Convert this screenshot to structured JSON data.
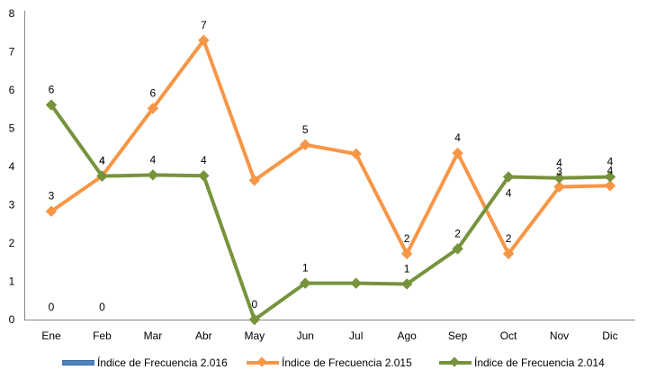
{
  "chart_data": {
    "type": "line",
    "categories": [
      "Ene",
      "Feb",
      "Mar",
      "Abr",
      "May",
      "Jun",
      "Jul",
      "Ago",
      "Sep",
      "Oct",
      "Nov",
      "Dic"
    ],
    "ylim": [
      0,
      8
    ],
    "yticks": [
      "0",
      "1",
      "2",
      "3",
      "4",
      "5",
      "6",
      "7",
      "8"
    ],
    "grid": false,
    "legend_position": "bottom",
    "series": [
      {
        "name": "Índice de Frecuencia 2.016",
        "color": "#4F81BD",
        "values": [
          0,
          0,
          null,
          null,
          null,
          null,
          null,
          null,
          null,
          null,
          null,
          null
        ],
        "labels": [
          "0",
          "0",
          "",
          "",
          "",
          "",
          "",
          "",
          "",
          "",
          "",
          ""
        ],
        "marker": "none"
      },
      {
        "name": "Índice de Frecuencia 2.015",
        "color": "#F79646",
        "values": [
          2.83,
          3.75,
          5.52,
          7.3,
          3.64,
          4.57,
          4.33,
          1.72,
          4.35,
          1.72,
          3.47,
          3.5
        ],
        "labels": [
          "3",
          "4",
          "6",
          "7",
          "",
          "5",
          "",
          "2",
          "4",
          "2",
          "3",
          "4"
        ],
        "marker": "diamond"
      },
      {
        "name": "Índice de Frecuencia 2.014",
        "color": "#77933C",
        "values": [
          5.61,
          3.75,
          3.78,
          3.76,
          0,
          0.95,
          0.95,
          0.93,
          1.85,
          3.73,
          3.7,
          3.73
        ],
        "labels": [
          "6",
          "4",
          "4",
          "4",
          "0",
          "1",
          "",
          "1",
          "2",
          "4",
          "4",
          "4"
        ],
        "marker": "diamond"
      }
    ]
  }
}
